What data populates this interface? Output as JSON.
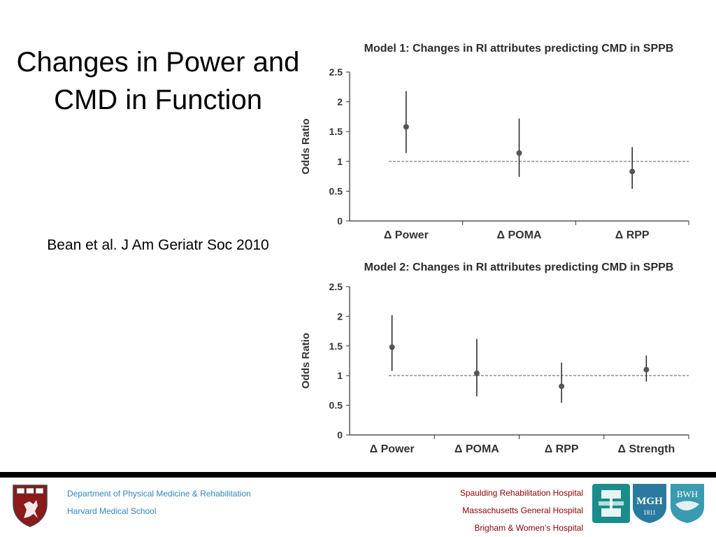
{
  "slide": {
    "title": "Changes in Power and CMD in Function",
    "citation": "Bean et al. J Am Geriatr Soc 2010"
  },
  "colors": {
    "footer_bar": "#000000",
    "footer_left_text": "#2e86c1",
    "footer_right_text": "#8b0000",
    "logo_teal": "#1a8c8c",
    "logo_mgh": "#2a7aa0",
    "logo_bwh": "#3a9ab0",
    "shield_red": "#8b1a1a",
    "dot": "#555555",
    "errorbar": "#222222",
    "refline": "#888888"
  },
  "footer": {
    "left": [
      "Department of Physical Medicine & Rehabilitation",
      "Harvard Medical School"
    ],
    "right": [
      "Spaulding Rehabilitation Hospital",
      "Massachusetts General Hospital",
      "Brigham & Women’s Hospital"
    ],
    "logos": {
      "mgh_text": "MGH",
      "mgh_year": "1811",
      "bwh_text": "BWH",
      "harvard_text": "VE RI TAS"
    }
  },
  "chart_data": [
    {
      "type": "scatter",
      "title": "Model 1: Changes in RI attributes predicting CMD in SPPB",
      "ylabel": "Odds Ratio",
      "ylim": [
        0,
        2.5
      ],
      "yticks": [
        "0",
        "0.5",
        "1",
        "1.5",
        "2",
        "2.5"
      ],
      "categories": [
        "Δ Power",
        "Δ POMA",
        "Δ RPP"
      ],
      "reference_line": 1,
      "points": [
        {
          "category": "Δ Power",
          "value": 1.58,
          "lower": 1.14,
          "upper": 2.18
        },
        {
          "category": "Δ POMA",
          "value": 1.14,
          "lower": 0.74,
          "upper": 1.72
        },
        {
          "category": "Δ RPP",
          "value": 0.83,
          "lower": 0.54,
          "upper": 1.24
        }
      ]
    },
    {
      "type": "scatter",
      "title": "Model 2: Changes in RI attributes predicting CMD in SPPB",
      "ylabel": "Odds Ratio",
      "ylim": [
        0,
        2.5
      ],
      "yticks": [
        "0",
        "0.5",
        "1",
        "1.5",
        "2",
        "2.5"
      ],
      "categories": [
        "Δ Power",
        "Δ POMA",
        "Δ RPP",
        "Δ Strength"
      ],
      "reference_line": 1,
      "points": [
        {
          "category": "Δ Power",
          "value": 1.48,
          "lower": 1.08,
          "upper": 2.02
        },
        {
          "category": "Δ POMA",
          "value": 1.04,
          "lower": 0.65,
          "upper": 1.62
        },
        {
          "category": "Δ RPP",
          "value": 0.82,
          "lower": 0.54,
          "upper": 1.22
        },
        {
          "category": "Δ Strength",
          "value": 1.1,
          "lower": 0.9,
          "upper": 1.34
        }
      ]
    }
  ]
}
